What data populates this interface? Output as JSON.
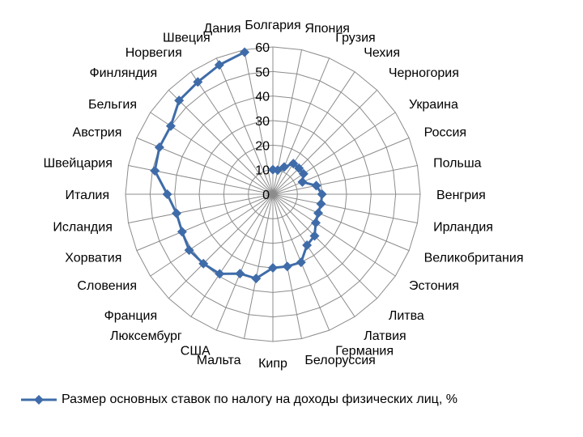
{
  "chart_data": {
    "type": "radar",
    "categories": [
      "Болгария",
      "Япония",
      "Грузия",
      "Чехия",
      "Черногория",
      "Украина",
      "Россия",
      "Польша",
      "Венгрия",
      "Ирландия",
      "Великобритания",
      "Эстония",
      "Литва",
      "Латвия",
      "Германия",
      "Белоруссия",
      "Кипр",
      "Мальта",
      "США",
      "Люксембург",
      "Франция",
      "Словения",
      "Хорватия",
      "Исландия",
      "Италия",
      "Швейцария",
      "Австрия",
      "Бельгия",
      "Финляндия",
      "Норвегия",
      "Швеция",
      "Дания"
    ],
    "series": [
      {
        "name": "Размер основных ставок по налогу на доходы физических лиц, %",
        "color": "#3F6CA9",
        "values": [
          10,
          10,
          12,
          15,
          15,
          15,
          13,
          18,
          20,
          20,
          20,
          21,
          24,
          25,
          30,
          30,
          30,
          35,
          35,
          39,
          40,
          41,
          40,
          40,
          43,
          49,
          50,
          50,
          54,
          55,
          57,
          59
        ]
      }
    ],
    "r_ticks": [
      0,
      10,
      20,
      30,
      40,
      50,
      60
    ],
    "rlim": [
      0,
      60
    ],
    "grid": true,
    "legend_position": "bottom"
  }
}
